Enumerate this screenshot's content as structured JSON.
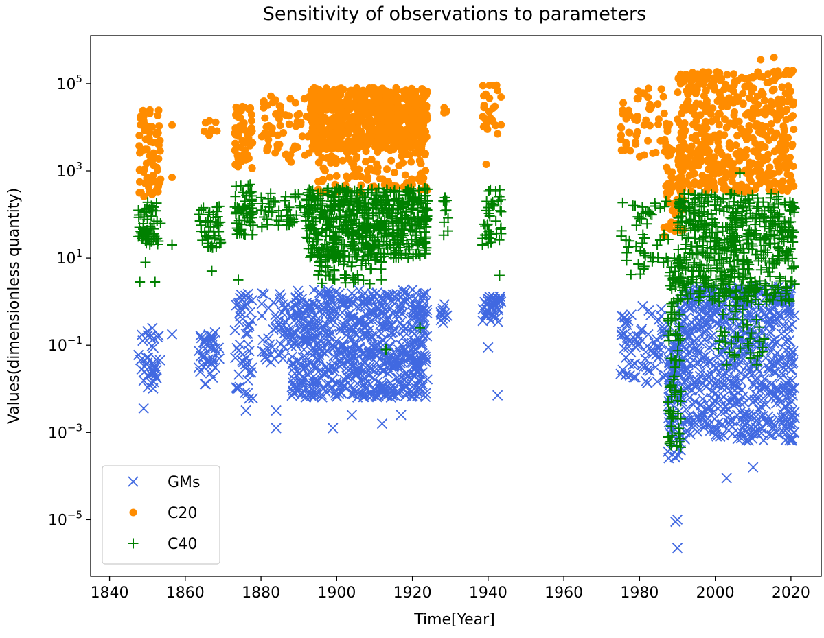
{
  "chart_data": {
    "type": "scatter",
    "title": "Sensitivity of observations to parameters",
    "xlabel": "Time[Year]",
    "ylabel": "Values(dimensionless quantity)",
    "xlim": [
      1835,
      2028
    ],
    "ylim_log10": [
      -6.3,
      6.1
    ],
    "y_scale": "log",
    "x_ticks": [
      1840,
      1860,
      1880,
      1900,
      1920,
      1940,
      1960,
      1980,
      2000,
      2020
    ],
    "x_tick_labels": [
      "1840",
      "1860",
      "1880",
      "1900",
      "1920",
      "1940",
      "1960",
      "1980",
      "2000",
      "2020"
    ],
    "y_ticks_log10": [
      -5,
      -3,
      -1,
      1,
      3,
      5
    ],
    "y_tick_labels": [
      {
        "base": "10",
        "exp": "−5"
      },
      {
        "base": "10",
        "exp": "−3"
      },
      {
        "base": "10",
        "exp": "−1"
      },
      {
        "base": "10",
        "exp": "1"
      },
      {
        "base": "10",
        "exp": "3"
      },
      {
        "base": "10",
        "exp": "5"
      }
    ],
    "legend_position": "lower-left",
    "series": [
      {
        "name": "GMs",
        "marker": "x",
        "color": "#4169e1",
        "clusters": [
          {
            "x": [
              1847.5,
              1853.5
            ],
            "log10_y": [
              -2.0,
              -0.6
            ],
            "n": 40
          },
          {
            "x": [
              1863.5,
              1869
            ],
            "log10_y": [
              -1.9,
              -0.7
            ],
            "n": 40
          },
          {
            "x": [
              1873,
              1878
            ],
            "log10_y": [
              -2.3,
              0.2
            ],
            "n": 50
          },
          {
            "x": [
              1880,
              1888
            ],
            "log10_y": [
              -1.4,
              0.2
            ],
            "n": 50
          },
          {
            "x": [
              1888,
              1924
            ],
            "log10_y": [
              -2.2,
              0.28
            ],
            "n": 700
          },
          {
            "x": [
              1927.5,
              1929.5
            ],
            "log10_y": [
              -0.6,
              0.0
            ],
            "n": 12
          },
          {
            "x": [
              1938.5,
              1943.5
            ],
            "log10_y": [
              -0.5,
              0.15
            ],
            "n": 40
          },
          {
            "x": [
              1975,
              1988
            ],
            "log10_y": [
              -1.9,
              -0.1
            ],
            "n": 80
          },
          {
            "x": [
              1987.5,
              1991
            ],
            "log10_y": [
              -3.6,
              -1.0
            ],
            "n": 70
          },
          {
            "x": [
              1990,
              2021
            ],
            "log10_y": [
              -3.2,
              0.35
            ],
            "n": 650
          }
        ],
        "points": [
          [
            1849,
            -2.45
          ],
          [
            1856.5,
            -0.75
          ],
          [
            1876,
            -2.5
          ],
          [
            1876.5,
            -2.1
          ],
          [
            1884,
            -2.5
          ],
          [
            1884,
            -2.9
          ],
          [
            1899,
            -2.9
          ],
          [
            1904,
            -2.6
          ],
          [
            1912,
            -2.8
          ],
          [
            1917,
            -2.6
          ],
          [
            1923.5,
            -2.1
          ],
          [
            1940,
            -1.05
          ],
          [
            1942.5,
            -2.15
          ],
          [
            1989.5,
            -5.05
          ],
          [
            1990,
            -5.0
          ],
          [
            1990,
            -5.65
          ],
          [
            2003,
            -4.05
          ],
          [
            2010,
            -3.8
          ],
          [
            2019,
            -3.0
          ]
        ]
      },
      {
        "name": "C20",
        "marker": "o",
        "color": "#ff8c00",
        "clusters": [
          {
            "x": [
              1847.5,
              1853.5
            ],
            "log10_y": [
              2.4,
              4.4
            ],
            "n": 70
          },
          {
            "x": [
              1863.5,
              1868.5
            ],
            "log10_y": [
              3.8,
              4.2
            ],
            "n": 8
          },
          {
            "x": [
              1873,
              1878
            ],
            "log10_y": [
              3.0,
              4.5
            ],
            "n": 60
          },
          {
            "x": [
              1880,
              1893
            ],
            "log10_y": [
              3.2,
              4.8
            ],
            "n": 60
          },
          {
            "x": [
              1893,
              1924
            ],
            "log10_y": [
              3.5,
              4.9
            ],
            "n": 700
          },
          {
            "x": [
              1895,
              1924
            ],
            "log10_y": [
              2.5,
              3.6
            ],
            "n": 120
          },
          {
            "x": [
              1928,
              1929.5
            ],
            "log10_y": [
              4.3,
              4.5
            ],
            "n": 4
          },
          {
            "x": [
              1938.5,
              1943.5
            ],
            "log10_y": [
              3.9,
              5.0
            ],
            "n": 25
          },
          {
            "x": [
              1975,
              1988
            ],
            "log10_y": [
              3.3,
              4.9
            ],
            "n": 60
          },
          {
            "x": [
              1986,
              1992
            ],
            "log10_y": [
              1.5,
              3.6
            ],
            "n": 60
          },
          {
            "x": [
              1990,
              2021
            ],
            "log10_y": [
              2.5,
              5.3
            ],
            "n": 500
          }
        ],
        "points": [
          [
            1856.5,
            2.85
          ],
          [
            1856.5,
            4.05
          ],
          [
            1939.5,
            3.15
          ],
          [
            1942.5,
            3.85
          ],
          [
            2006,
            3.0
          ],
          [
            2012,
            5.55
          ],
          [
            2015.5,
            5.6
          ],
          [
            2019,
            5.3
          ],
          [
            2020.5,
            5.3
          ]
        ]
      },
      {
        "name": "C40",
        "marker": "+",
        "color": "#008000",
        "clusters": [
          {
            "x": [
              1847.5,
              1853.5
            ],
            "log10_y": [
              1.3,
              2.3
            ],
            "n": 60
          },
          {
            "x": [
              1863.5,
              1869.5
            ],
            "log10_y": [
              1.2,
              2.2
            ],
            "n": 45
          },
          {
            "x": [
              1873,
              1878
            ],
            "log10_y": [
              1.5,
              2.7
            ],
            "n": 60
          },
          {
            "x": [
              1880,
              1893
            ],
            "log10_y": [
              1.7,
              2.5
            ],
            "n": 50
          },
          {
            "x": [
              1892,
              1924
            ],
            "log10_y": [
              1.0,
              2.6
            ],
            "n": 600
          },
          {
            "x": [
              1895,
              1912
            ],
            "log10_y": [
              0.4,
              1.1
            ],
            "n": 60
          },
          {
            "x": [
              1928,
              1929.5
            ],
            "log10_y": [
              1.5,
              2.4
            ],
            "n": 10
          },
          {
            "x": [
              1938.5,
              1943.5
            ],
            "log10_y": [
              1.3,
              2.6
            ],
            "n": 40
          },
          {
            "x": [
              1975,
              1988
            ],
            "log10_y": [
              0.6,
              2.4
            ],
            "n": 50
          },
          {
            "x": [
              1987.5,
              1991
            ],
            "log10_y": [
              -3.4,
              1.0
            ],
            "n": 90
          },
          {
            "x": [
              1990,
              2021
            ],
            "log10_y": [
              0.0,
              2.5
            ],
            "n": 550
          },
          {
            "x": [
              2000,
              2013
            ],
            "log10_y": [
              -1.3,
              0.2
            ],
            "n": 40
          }
        ],
        "points": [
          [
            1848,
            0.45
          ],
          [
            1849.5,
            0.9
          ],
          [
            1852,
            0.45
          ],
          [
            1856.5,
            1.3
          ],
          [
            1867,
            0.7
          ],
          [
            1874,
            0.5
          ],
          [
            1938.5,
            1.3
          ],
          [
            1943,
            0.6
          ],
          [
            1922,
            -0.6
          ],
          [
            1913,
            -1.1
          ],
          [
            2006.5,
            2.95
          ],
          [
            2003,
            -1.45
          ],
          [
            2011,
            -1.45
          ]
        ]
      }
    ]
  }
}
